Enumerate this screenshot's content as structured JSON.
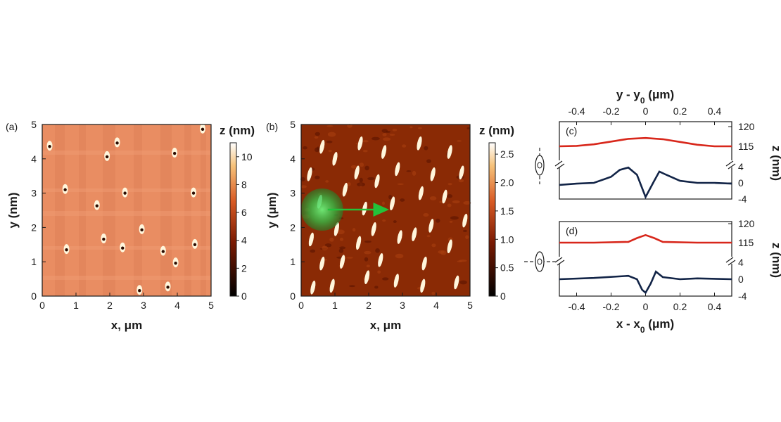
{
  "colors": {
    "frame": "#1a1a1a",
    "red_curve": "#d8271b",
    "blue_curve": "#122447",
    "green_spot": "#2fbf48",
    "arrow": "#23c23a",
    "map_a_bg": "#e98d62",
    "map_b_bg": "#8a2a05",
    "feature_bright": "#fff6dc"
  },
  "chart_data": [
    {
      "type": "heatmap",
      "panel": "(a)",
      "xlabel": "x, μm",
      "ylabel": "y (nm)",
      "xlim": [
        0,
        5
      ],
      "ylim": [
        0,
        5
      ],
      "xticks": [
        "0",
        "1",
        "2",
        "3",
        "4",
        "5"
      ],
      "yticks": [
        "0",
        "1",
        "2",
        "3",
        "4",
        "5"
      ],
      "colorbar": {
        "label": "z (nm)",
        "range": [
          0,
          11
        ],
        "ticks": [
          "0",
          "2",
          "4",
          "6",
          "8",
          "10"
        ]
      },
      "features": [
        {
          "x": 0.22,
          "y": 4.38
        },
        {
          "x": 0.68,
          "y": 3.12
        },
        {
          "x": 0.72,
          "y": 1.37
        },
        {
          "x": 1.62,
          "y": 2.65
        },
        {
          "x": 1.82,
          "y": 1.68
        },
        {
          "x": 1.92,
          "y": 4.08
        },
        {
          "x": 2.22,
          "y": 4.48
        },
        {
          "x": 2.38,
          "y": 1.42
        },
        {
          "x": 2.45,
          "y": 3.02
        },
        {
          "x": 2.88,
          "y": 0.18
        },
        {
          "x": 2.95,
          "y": 1.95
        },
        {
          "x": 3.58,
          "y": 1.32
        },
        {
          "x": 3.72,
          "y": 0.28
        },
        {
          "x": 3.92,
          "y": 4.18
        },
        {
          "x": 3.95,
          "y": 0.98
        },
        {
          "x": 4.48,
          "y": 3.02
        },
        {
          "x": 4.52,
          "y": 1.52
        },
        {
          "x": 4.75,
          "y": 4.88
        }
      ]
    },
    {
      "type": "heatmap",
      "panel": "(b)",
      "xlabel": "x, μm",
      "ylabel": "y (μm)",
      "xlim": [
        0,
        5
      ],
      "ylim": [
        0,
        5
      ],
      "xticks": [
        "0",
        "1",
        "2",
        "3",
        "4",
        "5"
      ],
      "yticks": [
        "0",
        "1",
        "2",
        "3",
        "4",
        "5"
      ],
      "colorbar": {
        "label": "z (nm)",
        "range": [
          0,
          2.7
        ],
        "ticks": [
          "0",
          "0.5",
          "1.0",
          "1.5",
          "2.0",
          "2.5"
        ]
      },
      "spot": {
        "x": 0.62,
        "y": 2.52
      },
      "arrow_to": {
        "x": 2.5,
        "y": 2.52
      },
      "features": [
        {
          "x": 0.62,
          "y": 4.35
        },
        {
          "x": 0.25,
          "y": 3.55
        },
        {
          "x": 0.55,
          "y": 2.75
        },
        {
          "x": 0.3,
          "y": 1.65
        },
        {
          "x": 0.62,
          "y": 0.95
        },
        {
          "x": 0.35,
          "y": 0.25
        },
        {
          "x": 1.0,
          "y": 4.0
        },
        {
          "x": 1.3,
          "y": 3.1
        },
        {
          "x": 1.05,
          "y": 1.95
        },
        {
          "x": 1.22,
          "y": 1.0
        },
        {
          "x": 0.92,
          "y": 0.3
        },
        {
          "x": 1.75,
          "y": 4.45
        },
        {
          "x": 1.65,
          "y": 3.6
        },
        {
          "x": 1.88,
          "y": 2.55
        },
        {
          "x": 1.7,
          "y": 1.55
        },
        {
          "x": 1.95,
          "y": 0.55
        },
        {
          "x": 2.45,
          "y": 4.2
        },
        {
          "x": 2.25,
          "y": 3.35
        },
        {
          "x": 2.15,
          "y": 1.95
        },
        {
          "x": 2.35,
          "y": 1.05
        },
        {
          "x": 2.85,
          "y": 3.7
        },
        {
          "x": 2.7,
          "y": 2.7
        },
        {
          "x": 2.92,
          "y": 1.72
        },
        {
          "x": 2.82,
          "y": 0.45
        },
        {
          "x": 3.5,
          "y": 4.45
        },
        {
          "x": 3.55,
          "y": 3.0
        },
        {
          "x": 3.35,
          "y": 1.8
        },
        {
          "x": 3.65,
          "y": 0.95
        },
        {
          "x": 3.9,
          "y": 3.55
        },
        {
          "x": 3.85,
          "y": 2.05
        },
        {
          "x": 3.6,
          "y": 0.3
        },
        {
          "x": 4.4,
          "y": 4.2
        },
        {
          "x": 4.25,
          "y": 2.9
        },
        {
          "x": 4.4,
          "y": 1.45
        },
        {
          "x": 4.6,
          "y": 0.4
        },
        {
          "x": 4.75,
          "y": 3.6
        },
        {
          "x": 4.85,
          "y": 2.2
        }
      ]
    },
    {
      "type": "line",
      "panel": "(c)",
      "top_xlabel": "y - y0 (μm)",
      "top_xticks": [
        "-0.4",
        "-0.2",
        "0",
        "0.2",
        "0.4"
      ],
      "xlim": [
        -0.5,
        0.5
      ],
      "ylabel": "z (nm)",
      "upper_yticks": [
        "115",
        "120"
      ],
      "lower_yticks": [
        "-4",
        "0",
        "4"
      ],
      "series": [
        {
          "color": "red",
          "segment": "upper",
          "x": [
            -0.5,
            -0.4,
            -0.3,
            -0.2,
            -0.1,
            0,
            0.1,
            0.2,
            0.3,
            0.4,
            0.5
          ],
          "y": [
            115.0,
            115.1,
            115.5,
            116.2,
            116.9,
            117.1,
            116.8,
            116.1,
            115.4,
            115.0,
            115.0
          ]
        },
        {
          "color": "blue",
          "segment": "lower",
          "x": [
            -0.5,
            -0.4,
            -0.3,
            -0.2,
            -0.15,
            -0.1,
            -0.05,
            0,
            0.05,
            0.08,
            0.12,
            0.2,
            0.3,
            0.4,
            0.5
          ],
          "y": [
            -0.5,
            -0.2,
            0.0,
            1.5,
            3.2,
            3.8,
            2.0,
            -3.5,
            0.5,
            2.8,
            2.0,
            0.5,
            0.0,
            0.0,
            -0.2
          ]
        }
      ]
    },
    {
      "type": "line",
      "panel": "(d)",
      "xlabel": "x - x0 (μm)",
      "xticks": [
        "-0.4",
        "-0.2",
        "0",
        "0.2",
        "0.4"
      ],
      "xlim": [
        -0.5,
        0.5
      ],
      "ylabel": "z (nm)",
      "upper_yticks": [
        "115",
        "120"
      ],
      "lower_yticks": [
        "-4",
        "0",
        "4"
      ],
      "series": [
        {
          "color": "red",
          "segment": "upper",
          "x": [
            -0.5,
            -0.3,
            -0.1,
            -0.05,
            0,
            0.05,
            0.1,
            0.3,
            0.5
          ],
          "y": [
            115.0,
            115.0,
            115.2,
            116.2,
            117.0,
            116.2,
            115.2,
            115.0,
            115.0
          ]
        },
        {
          "color": "blue",
          "segment": "lower",
          "x": [
            -0.5,
            -0.3,
            -0.1,
            -0.05,
            -0.02,
            0,
            0.03,
            0.06,
            0.1,
            0.2,
            0.3,
            0.5
          ],
          "y": [
            0.0,
            0.3,
            0.8,
            0.0,
            -2.5,
            -3.2,
            -1.0,
            1.8,
            0.5,
            0.0,
            0.2,
            0.0
          ]
        }
      ]
    }
  ]
}
